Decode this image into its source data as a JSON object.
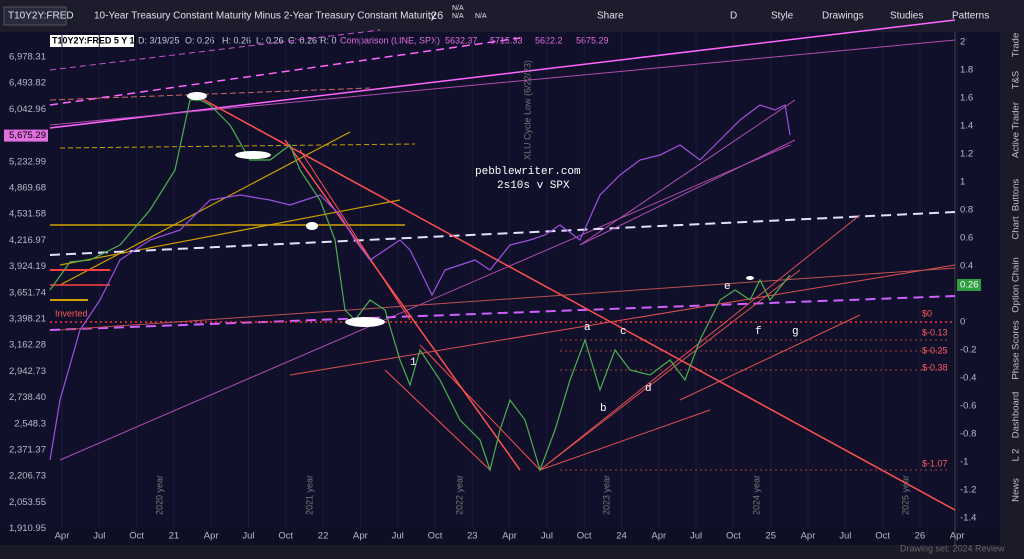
{
  "toolbar": {
    "symbol": "T10Y2Y:FRED",
    "description": "10-Year Treasury Constant Maturity Minus 2-Year Treasury Constant Maturity",
    "last": ".26",
    "stats": [
      "N/A",
      "N/A",
      "N/A"
    ],
    "buttons": [
      "Share",
      "D",
      "Style",
      "Drawings",
      "Studies",
      "Patterns"
    ]
  },
  "header": {
    "title": "T10Y2Y:FRED 5 Y 1D",
    "date": "D: 3/19/25",
    "open": "O: 0.26",
    "high": "H: 0.26",
    "low": "L: 0.26",
    "close": "C: 0.26",
    "range": "R: 0",
    "comparison": "Comparison (LINE, SPX)",
    "comparison_values": [
      "5632.37",
      "5715.33",
      "5622.2",
      "5675.29"
    ]
  },
  "left_axis": {
    "labels": [
      "6,978.31",
      "6,493.82",
      "6,042.96",
      "5,675.29",
      "5,232.99",
      "4,869.68",
      "4,531.58",
      "4,216.97",
      "3,924.19",
      "3,651.74",
      "3,398.21",
      "3,162.28",
      "2,942.73",
      "2,738.40",
      "2,548.3",
      "2,371.37",
      "2,206.73",
      "2,053.55",
      "1,910.95"
    ]
  },
  "right_axis": {
    "labels": [
      "2",
      "1.8",
      "1.6",
      "1.4",
      "1.2",
      "1",
      "0.8",
      "0.6",
      "0.4",
      "0.26",
      "0",
      "-0.2",
      "-0.4",
      "-0.6",
      "-0.8",
      "-1",
      "-1.2",
      "-1.4"
    ]
  },
  "bottom_axis": {
    "labels": [
      "Apr",
      "Jul",
      "Oct",
      "21",
      "Apr",
      "Jul",
      "Oct",
      "22",
      "Apr",
      "Jul",
      "Oct",
      "23",
      "Apr",
      "Jul",
      "Oct",
      "24",
      "Apr",
      "Jul",
      "Oct",
      "25",
      "Apr",
      "Jul",
      "Oct",
      "26",
      "Apr"
    ]
  },
  "annotations": {
    "site": "pebblewriter.com",
    "subtitle": "2s10s v SPX",
    "inverted": "Inverted",
    "levels": [
      "$0",
      "$-0.13",
      "$-0.25",
      "$-0.38",
      "$-1.07"
    ],
    "points": [
      "a",
      "b",
      "c",
      "d",
      "e",
      "f",
      "g",
      "1"
    ],
    "years": [
      "2020 year",
      "2021 year",
      "2022 year",
      "2023 year",
      "2024 year",
      "2025 year"
    ],
    "cycle": "XLU Cycle Low (6/22/23)"
  },
  "sidebar": [
    "Trade",
    "T&S",
    "Active Trader",
    "Buttons",
    "Chart",
    "Option Chain",
    "Phase Scores",
    "Dashboard",
    "L 2",
    "News"
  ],
  "footer": {
    "drawing_set": "Drawing set: 2024 Review"
  }
}
